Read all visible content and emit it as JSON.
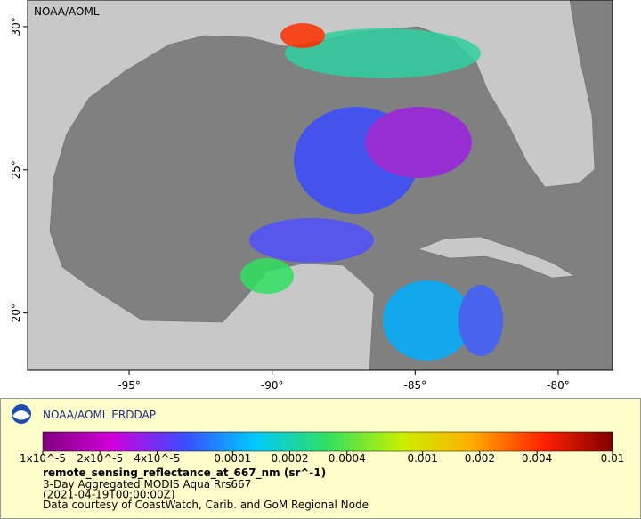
{
  "map": {
    "watermark": "NOAA/AOML",
    "xlim": [
      -98.55,
      -78.1
    ],
    "ylim": [
      18,
      30.93
    ],
    "xticks": [
      {
        "value": -95,
        "label": "-95°"
      },
      {
        "value": -90,
        "label": "-90°"
      },
      {
        "value": -85,
        "label": "-85°"
      },
      {
        "value": -80,
        "label": "-80°"
      }
    ],
    "yticks": [
      {
        "value": 20,
        "label": "20°"
      },
      {
        "value": 25,
        "label": "25°"
      },
      {
        "value": 30,
        "label": "30°"
      }
    ]
  },
  "legend": {
    "title": "NOAA/AOML ERDDAP",
    "colorbar": {
      "scale": "log",
      "lim": [
        1e-05,
        0.01
      ],
      "ticks": [
        {
          "value": 1e-05,
          "label": "1x10^-5"
        },
        {
          "value": 2e-05,
          "label": "2x10^-5"
        },
        {
          "value": 4e-05,
          "label": "4x10^-5"
        },
        0.0001,
        0.0002,
        0.0004,
        0.001,
        0.002,
        0.004,
        0.01
      ]
    },
    "variable": "remote_sensing_reflectance_at_667_nm (sr^-1)",
    "lines": [
      "3-Day Aggregated MODIS Aqua Rrs667",
      "(2021-04-19T00:00:00Z)",
      "Data courtesy of CoastWatch, Carib. and GoM Regional Node"
    ]
  }
}
